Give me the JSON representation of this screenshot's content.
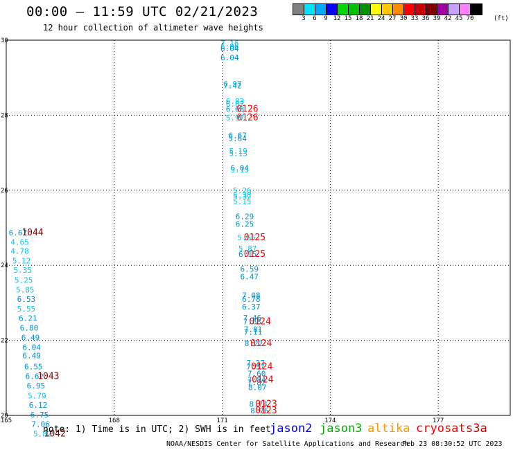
{
  "header": {
    "title": "00:00 – 11:59 UTC 02/21/2023",
    "subtitle": "12 hour collection of altimeter wave heights"
  },
  "legend": {
    "unit": "(ft)",
    "bins": [
      {
        "label": "3",
        "color": "#808080"
      },
      {
        "label": "6",
        "color": "#00e5ff"
      },
      {
        "label": "9",
        "color": "#00a8ff"
      },
      {
        "label": "12",
        "color": "#0000ff"
      },
      {
        "label": "15",
        "color": "#00d800"
      },
      {
        "label": "18",
        "color": "#00c000"
      },
      {
        "label": "21",
        "color": "#009000"
      },
      {
        "label": "24",
        "color": "#ffff00"
      },
      {
        "label": "27",
        "color": "#ffc800"
      },
      {
        "label": "30",
        "color": "#ff8c00"
      },
      {
        "label": "33",
        "color": "#ff0000"
      },
      {
        "label": "36",
        "color": "#c80000"
      },
      {
        "label": "39",
        "color": "#800000"
      },
      {
        "label": "42",
        "color": "#a000a0"
      },
      {
        "label": "45",
        "color": "#c8a0ff"
      },
      {
        "label": "70",
        "color": "#ff80ff"
      },
      {
        "label": "",
        "color": "#000000"
      }
    ]
  },
  "colors": {
    "cyan": "#00c8f0",
    "blue": "#0090d0",
    "red": "#ff0000",
    "darkred": "#800000",
    "grid": "#000000"
  },
  "chart_data": {
    "type": "scatter",
    "title": "00:00 – 11:59 UTC 02/21/2023",
    "subtitle": "12 hour collection of altimeter wave heights",
    "xlim": [
      165,
      179
    ],
    "ylim": [
      20,
      30
    ],
    "x_ticks": [
      "165",
      "168",
      "171",
      "174",
      "177"
    ],
    "x_tick_values": [
      165,
      168,
      171,
      174,
      177
    ],
    "y_ticks": [
      "30",
      "28",
      "26",
      "24",
      "22",
      "20"
    ],
    "y_tick_values": [
      30,
      28,
      26,
      24,
      22,
      20
    ],
    "grid": true,
    "points": [
      {
        "lon": 170.95,
        "lat": 29.92,
        "v": "7.16",
        "c": "cyan"
      },
      {
        "lon": 170.95,
        "lat": 29.83,
        "v": "6.96",
        "c": "cyan"
      },
      {
        "lon": 170.95,
        "lat": 29.78,
        "v": "6.04",
        "c": "blue"
      },
      {
        "lon": 170.95,
        "lat": 29.54,
        "v": "6.04",
        "c": "blue"
      },
      {
        "lon": 171.03,
        "lat": 28.84,
        "v": "6.97",
        "c": "cyan"
      },
      {
        "lon": 171.03,
        "lat": 28.79,
        "v": "7.42",
        "c": "blue"
      },
      {
        "lon": 171.1,
        "lat": 28.38,
        "v": "6.83",
        "c": "cyan"
      },
      {
        "lon": 171.1,
        "lat": 28.3,
        "v": "6.67",
        "c": "cyan"
      },
      {
        "lon": 171.1,
        "lat": 28.16,
        "v": "6.68",
        "c": "blue"
      },
      {
        "lon": 171.1,
        "lat": 27.93,
        "v": "5.97",
        "c": "cyan"
      },
      {
        "lon": 171.17,
        "lat": 27.46,
        "v": "6.67",
        "c": "blue"
      },
      {
        "lon": 171.17,
        "lat": 27.38,
        "v": "5.64",
        "c": "blue"
      },
      {
        "lon": 171.19,
        "lat": 27.05,
        "v": "5.19",
        "c": "cyan"
      },
      {
        "lon": 171.19,
        "lat": 26.98,
        "v": "5.13",
        "c": "cyan"
      },
      {
        "lon": 171.23,
        "lat": 26.6,
        "v": "6.04",
        "c": "blue"
      },
      {
        "lon": 171.23,
        "lat": 26.55,
        "v": "5.13",
        "c": "cyan"
      },
      {
        "lon": 171.3,
        "lat": 26.0,
        "v": "5.26",
        "c": "cyan"
      },
      {
        "lon": 171.3,
        "lat": 25.88,
        "v": "5.38",
        "c": "cyan"
      },
      {
        "lon": 171.3,
        "lat": 25.83,
        "v": "5.32",
        "c": "cyan"
      },
      {
        "lon": 171.3,
        "lat": 25.7,
        "v": "5.15",
        "c": "cyan"
      },
      {
        "lon": 171.37,
        "lat": 25.3,
        "v": "6.29",
        "c": "blue"
      },
      {
        "lon": 171.37,
        "lat": 25.1,
        "v": "6.25",
        "c": "blue"
      },
      {
        "lon": 171.42,
        "lat": 24.74,
        "v": "5.56",
        "c": "cyan"
      },
      {
        "lon": 171.45,
        "lat": 24.45,
        "v": "5.87",
        "c": "cyan"
      },
      {
        "lon": 171.45,
        "lat": 24.3,
        "v": "6.15",
        "c": "blue"
      },
      {
        "lon": 171.5,
        "lat": 23.9,
        "v": "6.59",
        "c": "blue"
      },
      {
        "lon": 171.5,
        "lat": 23.7,
        "v": "6.47",
        "c": "blue"
      },
      {
        "lon": 171.55,
        "lat": 23.2,
        "v": "7.08",
        "c": "blue"
      },
      {
        "lon": 171.55,
        "lat": 23.1,
        "v": "6.78",
        "c": "blue"
      },
      {
        "lon": 171.55,
        "lat": 22.9,
        "v": "6.37",
        "c": "blue"
      },
      {
        "lon": 171.58,
        "lat": 22.6,
        "v": "7.46",
        "c": "blue"
      },
      {
        "lon": 171.58,
        "lat": 22.5,
        "v": "7.63",
        "c": "blue"
      },
      {
        "lon": 171.6,
        "lat": 22.3,
        "v": "7.81",
        "c": "blue"
      },
      {
        "lon": 171.6,
        "lat": 22.22,
        "v": "7.11",
        "c": "blue"
      },
      {
        "lon": 171.62,
        "lat": 21.92,
        "v": "8.22",
        "c": "blue"
      },
      {
        "lon": 171.67,
        "lat": 21.4,
        "v": "7.27",
        "c": "blue"
      },
      {
        "lon": 171.67,
        "lat": 21.3,
        "v": "7.37",
        "c": "blue"
      },
      {
        "lon": 171.7,
        "lat": 21.12,
        "v": "7.60",
        "c": "blue"
      },
      {
        "lon": 171.7,
        "lat": 20.95,
        "v": "7.54",
        "c": "blue"
      },
      {
        "lon": 171.7,
        "lat": 20.88,
        "v": "7.82",
        "c": "blue"
      },
      {
        "lon": 171.72,
        "lat": 20.75,
        "v": "8.07",
        "c": "blue"
      },
      {
        "lon": 171.75,
        "lat": 20.3,
        "v": "8.74",
        "c": "blue"
      },
      {
        "lon": 171.78,
        "lat": 20.13,
        "v": "8.76",
        "c": "blue"
      },
      {
        "lon": 165.07,
        "lat": 24.87,
        "v": "6.67",
        "c": "blue"
      },
      {
        "lon": 165.12,
        "lat": 24.62,
        "v": "4.65",
        "c": "cyan"
      },
      {
        "lon": 165.12,
        "lat": 24.38,
        "v": "4.78",
        "c": "cyan"
      },
      {
        "lon": 165.17,
        "lat": 24.12,
        "v": "5.12",
        "c": "cyan"
      },
      {
        "lon": 165.2,
        "lat": 23.87,
        "v": "5.35",
        "c": "cyan"
      },
      {
        "lon": 165.23,
        "lat": 23.61,
        "v": "5.25",
        "c": "cyan"
      },
      {
        "lon": 165.27,
        "lat": 23.35,
        "v": "5.85",
        "c": "cyan"
      },
      {
        "lon": 165.3,
        "lat": 23.1,
        "v": "6.53",
        "c": "blue"
      },
      {
        "lon": 165.3,
        "lat": 22.84,
        "v": "5.55",
        "c": "cyan"
      },
      {
        "lon": 165.35,
        "lat": 22.59,
        "v": "6.21",
        "c": "blue"
      },
      {
        "lon": 165.38,
        "lat": 22.33,
        "v": "6.80",
        "c": "blue"
      },
      {
        "lon": 165.42,
        "lat": 22.08,
        "v": "6.49",
        "c": "blue"
      },
      {
        "lon": 165.45,
        "lat": 21.82,
        "v": "6.04",
        "c": "blue"
      },
      {
        "lon": 165.45,
        "lat": 21.6,
        "v": "6.49",
        "c": "blue"
      },
      {
        "lon": 165.5,
        "lat": 21.3,
        "v": "6.55",
        "c": "blue"
      },
      {
        "lon": 165.53,
        "lat": 21.04,
        "v": "6.62",
        "c": "blue"
      },
      {
        "lon": 165.57,
        "lat": 20.79,
        "v": "6.95",
        "c": "blue"
      },
      {
        "lon": 165.6,
        "lat": 20.53,
        "v": "5.79",
        "c": "cyan"
      },
      {
        "lon": 165.63,
        "lat": 20.28,
        "v": "6.12",
        "c": "blue"
      },
      {
        "lon": 165.67,
        "lat": 20.02,
        "v": "6.75",
        "c": "blue"
      },
      {
        "lon": 165.7,
        "lat": 19.77,
        "v": "7.06",
        "c": "blue"
      },
      {
        "lon": 165.75,
        "lat": 19.51,
        "v": "5.82",
        "c": "cyan"
      }
    ],
    "pass_labels": [
      {
        "lon": 171.4,
        "lat": 28.16,
        "text": "0126",
        "c": "red"
      },
      {
        "lon": 171.4,
        "lat": 27.93,
        "text": "0126",
        "c": "red"
      },
      {
        "lon": 171.6,
        "lat": 24.74,
        "text": "0125",
        "c": "red"
      },
      {
        "lon": 171.6,
        "lat": 24.3,
        "text": "0125",
        "c": "red"
      },
      {
        "lon": 171.75,
        "lat": 22.5,
        "text": "0124",
        "c": "red"
      },
      {
        "lon": 171.78,
        "lat": 21.92,
        "text": "0124",
        "c": "red"
      },
      {
        "lon": 171.8,
        "lat": 21.3,
        "text": "0124",
        "c": "red"
      },
      {
        "lon": 171.82,
        "lat": 20.95,
        "text": "0124",
        "c": "red"
      },
      {
        "lon": 171.92,
        "lat": 20.3,
        "text": "0123",
        "c": "red"
      },
      {
        "lon": 171.92,
        "lat": 20.13,
        "text": "0123",
        "c": "red"
      },
      {
        "lon": 165.43,
        "lat": 24.87,
        "text": "1044",
        "c": "darkred"
      },
      {
        "lon": 165.87,
        "lat": 21.04,
        "text": "1043",
        "c": "darkred"
      },
      {
        "lon": 166.05,
        "lat": 19.51,
        "text": "1042",
        "c": "darkred"
      }
    ]
  },
  "bottom": {
    "note": "note: 1) Time is in UTC; 2) SWH is in feet",
    "satellites": [
      {
        "name": "jason2",
        "color": "#0000ff"
      },
      {
        "name": "jason3",
        "color": "#00b000"
      },
      {
        "name": "altika",
        "color": "#ff9900"
      },
      {
        "name": "cryosat",
        "color": "#ff0000"
      },
      {
        "name": "s3a",
        "color": "#c00000"
      }
    ],
    "footer_left": "NOAA/NESDIS Center for Satellite Applications and Research",
    "footer_right": "Feb 23 08:30:52 UTC 2023"
  }
}
